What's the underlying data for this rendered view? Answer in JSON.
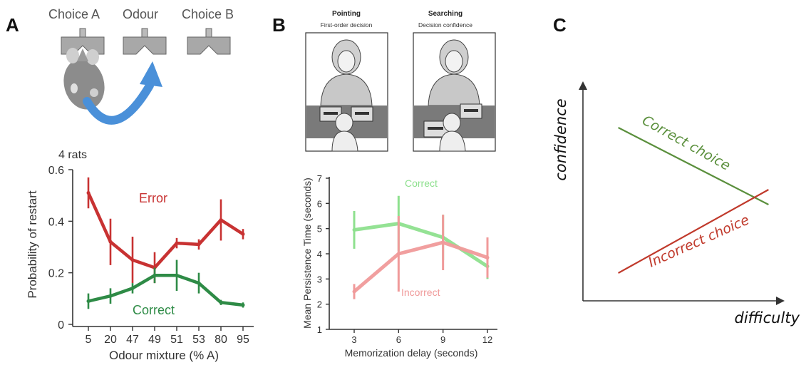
{
  "panels": {
    "a": {
      "letter": "A"
    },
    "b": {
      "letter": "B"
    },
    "c": {
      "letter": "C"
    }
  },
  "panel_a_illustration": {
    "port_labels": [
      "Choice A",
      "Odour",
      "Choice B"
    ],
    "arrow_color": "#4a90d9",
    "rat_icon": "rat-icon"
  },
  "panel_b_illustration": {
    "scenes": [
      {
        "title": "Pointing",
        "subtitle": "First-order decision"
      },
      {
        "title": "Searching",
        "subtitle": "Decision confidence"
      }
    ],
    "person_icon": "woman-and-child-illustration"
  },
  "chart_data": [
    {
      "type": "line",
      "annotation": "4 rats",
      "xlabel": "Odour mixture (% A)",
      "ylabel": "Probability of restart",
      "categories": [
        "5",
        "20",
        "47",
        "49",
        "51",
        "53",
        "80",
        "95"
      ],
      "ylim": [
        0,
        0.6
      ],
      "yticks": [
        "0",
        "0.2",
        "0.4",
        "0.6"
      ],
      "grid": false,
      "series": [
        {
          "name": "Error",
          "color": "#c83232",
          "values": [
            0.51,
            0.32,
            0.25,
            0.22,
            0.315,
            0.31,
            0.405,
            0.35
          ],
          "errors": [
            0.06,
            0.09,
            0.09,
            0.06,
            0.02,
            0.02,
            0.08,
            0.02
          ]
        },
        {
          "name": "Correct",
          "color": "#2e8b46",
          "values": [
            0.09,
            0.11,
            0.14,
            0.19,
            0.19,
            0.16,
            0.085,
            0.075
          ],
          "errors": [
            0.03,
            0.03,
            0.02,
            0.03,
            0.06,
            0.04,
            0.01,
            0.01
          ]
        }
      ]
    },
    {
      "type": "line",
      "xlabel": "Memorization delay (seconds)",
      "ylabel": "Mean Persistence Time (seconds)",
      "x": [
        3,
        6,
        9,
        12
      ],
      "xticks": [
        "3",
        "6",
        "9",
        "12"
      ],
      "ylim": [
        1,
        7
      ],
      "yticks": [
        "1",
        "2",
        "3",
        "4",
        "5",
        "6",
        "7"
      ],
      "grid": false,
      "series": [
        {
          "name": "Correct",
          "color": "#8ee08e",
          "values": [
            4.95,
            5.2,
            4.65,
            3.5
          ],
          "errors": [
            0.75,
            1.1,
            0.9,
            0.5
          ]
        },
        {
          "name": "Incorrect",
          "color": "#f09a9a",
          "values": [
            2.5,
            4.0,
            4.45,
            3.85
          ],
          "errors": [
            0.3,
            1.5,
            1.1,
            0.8
          ]
        }
      ]
    },
    {
      "type": "line",
      "xlabel": "difficulty",
      "ylabel": "confidence",
      "axis_ticks": false,
      "xlim": [
        0,
        1
      ],
      "ylim": [
        0,
        1
      ],
      "series": [
        {
          "name": "Correct choice",
          "color": "#5a8f3c",
          "x": [
            0.16,
            0.84
          ],
          "values": [
            0.81,
            0.45
          ]
        },
        {
          "name": "Incorrect choice",
          "color": "#c0392b",
          "x": [
            0.16,
            0.84
          ],
          "values": [
            0.13,
            0.52
          ]
        }
      ]
    }
  ]
}
